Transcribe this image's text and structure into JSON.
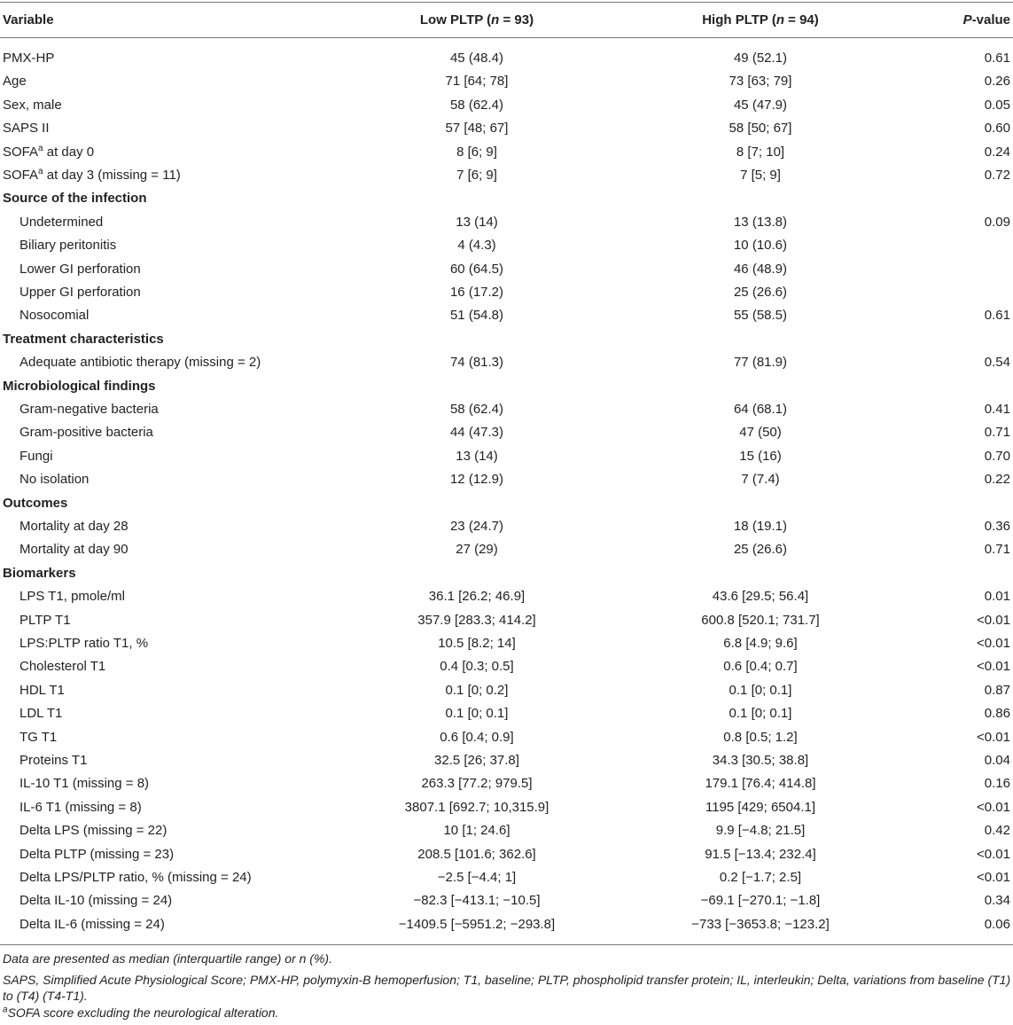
{
  "table": {
    "header": {
      "variable": "Variable",
      "low": [
        "Low PLTP (",
        "n",
        " = 93)"
      ],
      "high": [
        "High PLTP (",
        "n",
        " = 94)"
      ],
      "p": [
        "P",
        "-value"
      ]
    },
    "rows": [
      [
        "PMX-HP",
        "45 (48.4)",
        "49 (52.1)",
        "0.61"
      ],
      [
        "Age",
        "71 [64; 78]",
        "73 [63; 79]",
        "0.26"
      ],
      [
        "Sex, male",
        "58 (62.4)",
        "45 (47.9)",
        "0.05"
      ],
      [
        "SAPS II",
        "57 [48; 67]",
        "58 [50; 67]",
        "0.60"
      ],
      [
        [
          "SOFA",
          "a",
          " at day 0"
        ],
        "8 [6; 9]",
        "8 [7; 10]",
        "0.24"
      ],
      [
        [
          "SOFA",
          "a",
          " at day 3 (missing = 11)"
        ],
        "7 [6; 9]",
        "7 [5; 9]",
        "0.72"
      ]
    ],
    "groups": [
      {
        "title": "Source of the infection",
        "rows": [
          [
            "Undetermined",
            "13 (14)",
            "13 (13.8)",
            "0.09"
          ],
          [
            "Biliary peritonitis",
            "4 (4.3)",
            "10 (10.6)"
          ],
          [
            "Lower GI perforation",
            "60 (64.5)",
            "46 (48.9)"
          ],
          [
            "Upper GI perforation",
            "16 (17.2)",
            "25 (26.6)"
          ],
          [
            "Nosocomial",
            "51 (54.8)",
            "55 (58.5)",
            "0.61"
          ]
        ]
      },
      {
        "title": "Treatment characteristics",
        "rows": [
          [
            "Adequate antibiotic therapy (missing = 2)",
            "74 (81.3)",
            "77 (81.9)",
            "0.54"
          ]
        ]
      },
      {
        "title": "Microbiological findings",
        "rows": [
          [
            "Gram-negative bacteria",
            "58 (62.4)",
            "64 (68.1)",
            "0.41"
          ],
          [
            "Gram-positive bacteria",
            "44 (47.3)",
            "47 (50)",
            "0.71"
          ],
          [
            "Fungi",
            "13 (14)",
            "15 (16)",
            "0.70"
          ],
          [
            "No isolation",
            "12 (12.9)",
            "7 (7.4)",
            "0.22"
          ]
        ]
      },
      {
        "title": "Outcomes",
        "rows": [
          [
            "Mortality at day 28",
            "23 (24.7)",
            "18 (19.1)",
            "0.36"
          ],
          [
            "Mortality at day 90",
            "27 (29)",
            "25 (26.6)",
            "0.71"
          ]
        ]
      },
      {
        "title": "Biomarkers",
        "rows": [
          [
            "LPS T1, pmole/ml",
            "36.1 [26.2; 46.9]",
            "43.6 [29.5; 56.4]",
            "0.01"
          ],
          [
            "PLTP T1",
            "357.9 [283.3; 414.2]",
            "600.8 [520.1; 731.7]",
            "<0.01"
          ],
          [
            "LPS:PLTP ratio T1, %",
            "10.5 [8.2; 14]",
            "6.8 [4.9; 9.6]",
            "<0.01"
          ],
          [
            "Cholesterol T1",
            "0.4 [0.3; 0.5]",
            "0.6 [0.4; 0.7]",
            "<0.01"
          ],
          [
            "HDL T1",
            "0.1 [0; 0.2]",
            "0.1 [0; 0.1]",
            "0.87"
          ],
          [
            "LDL T1",
            "0.1 [0; 0.1]",
            "0.1 [0; 0.1]",
            "0.86"
          ],
          [
            "TG T1",
            "0.6 [0.4; 0.9]",
            "0.8 [0.5; 1.2]",
            "<0.01"
          ],
          [
            "Proteins T1",
            "32.5 [26; 37.8]",
            "34.3 [30.5; 38.8]",
            "0.04"
          ],
          [
            "IL-10 T1 (missing = 8)",
            "263.3 [77.2; 979.5]",
            "179.1 [76.4; 414.8]",
            "0.16"
          ],
          [
            "IL-6 T1 (missing = 8)",
            "3807.1 [692.7; 10,315.9]",
            "1195 [429; 6504.1]",
            "<0.01"
          ],
          [
            "Delta LPS (missing = 22)",
            "10 [1; 24.6]",
            "9.9 [−4.8; 21.5]",
            "0.42"
          ],
          [
            "Delta PLTP (missing = 23)",
            "208.5 [101.6; 362.6]",
            "91.5 [−13.4; 232.4]",
            "<0.01"
          ],
          [
            "Delta LPS/PLTP ratio, % (missing = 24)",
            "−2.5 [−4.4; 1]",
            "0.2 [−1.7; 2.5]",
            "<0.01"
          ],
          [
            "Delta IL-10 (missing = 24)",
            "−82.3 [−413.1; −10.5]",
            "−69.1 [−270.1; −1.8]",
            "0.34"
          ],
          [
            "Delta IL-6 (missing = 24)",
            "−1409.5 [−5951.2; −293.8]",
            "−733 [−3653.8; −123.2]",
            "0.06"
          ]
        ]
      }
    ],
    "notes": [
      "Data are presented as median (interquartile range) or n (%).",
      "SAPS, Simplified Acute Physiological Score; PMX-HP, polymyxin-B hemoperfusion; T1, baseline; PLTP, phospholipid transfer protein; IL, interleukin; Delta, variations from baseline (T1) to (T4) (T4-T1).",
      [
        "a",
        "SOFA score excluding the neurological alteration."
      ]
    ]
  }
}
